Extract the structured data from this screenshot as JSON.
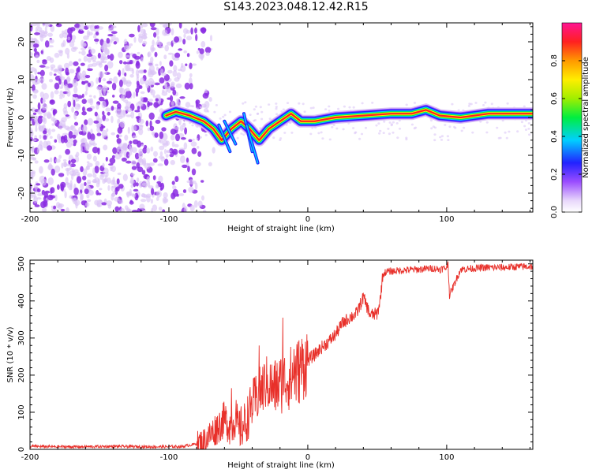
{
  "title": "S143.2023.048.12.42.R15",
  "colors": {
    "snr_line": "#e8302a",
    "spectrogram_noise": "#8a2be2",
    "spectrogram_noise_light": "#d9c2f5"
  },
  "chart_data": [
    {
      "type": "heatmap",
      "title": "",
      "xlabel": "Height of straight line (km)",
      "ylabel": "Frequency (Hz)",
      "xlim": [
        -200,
        162
      ],
      "ylim": [
        -25,
        25
      ],
      "xticks": [
        -200,
        -100,
        0,
        100
      ],
      "yticks": [
        -20,
        -10,
        0,
        10,
        20
      ],
      "colorbar": {
        "label": "Normalized spectral amplitude",
        "range": [
          0.0,
          1.0
        ],
        "ticks": [
          "0.0",
          "0.2",
          "0.4",
          "0.6",
          "0.8"
        ],
        "tick_values": [
          0.0,
          0.2,
          0.4,
          0.6,
          0.8
        ],
        "colormap": "rainbow (white → purple → blue → cyan → green → yellow → orange → red → magenta)"
      },
      "ridge": {
        "description": "dominant spectral line",
        "points": [
          [
            -102,
            0.5
          ],
          [
            -95,
            1.5
          ],
          [
            -85,
            0.5
          ],
          [
            -75,
            -1
          ],
          [
            -68,
            -3
          ],
          [
            -62,
            -6
          ],
          [
            -55,
            -3
          ],
          [
            -48,
            -1
          ],
          [
            -42,
            -3
          ],
          [
            -35,
            -6
          ],
          [
            -28,
            -3
          ],
          [
            -20,
            -1
          ],
          [
            -12,
            1
          ],
          [
            -5,
            -1
          ],
          [
            5,
            -1
          ],
          [
            20,
            0
          ],
          [
            40,
            0.5
          ],
          [
            60,
            1
          ],
          [
            75,
            1
          ],
          [
            85,
            2
          ],
          [
            95,
            0.5
          ],
          [
            110,
            0
          ],
          [
            130,
            1
          ],
          [
            162,
            1
          ]
        ],
        "peak_amplitude_at": [
          60,
          1
        ]
      },
      "noise_region": [
        -200,
        -85
      ]
    },
    {
      "type": "line",
      "title": "",
      "xlabel": "Height of straight line (km)",
      "ylabel": "SNR (10 * v/v)",
      "xlim": [
        -200,
        162
      ],
      "ylim": [
        0,
        510
      ],
      "xticks": [
        -200,
        -100,
        0,
        100
      ],
      "yticks": [
        0,
        100,
        200,
        300,
        400,
        500
      ],
      "series": [
        {
          "x": [
            -200,
            -180,
            -160,
            -140,
            -120,
            -100,
            -90,
            -80,
            -75,
            -70,
            -65,
            -60,
            -55,
            -52,
            -50,
            -45,
            -40,
            -35,
            -30,
            -25,
            -20,
            -15,
            -10,
            -5,
            0,
            5,
            10,
            15,
            20,
            25,
            30,
            35,
            40,
            45,
            50,
            52,
            54,
            56,
            60,
            70,
            80,
            90,
            95,
            100,
            101,
            102,
            110,
            120,
            130,
            140,
            150,
            162
          ],
          "y": [
            8,
            7,
            7,
            8,
            7,
            7,
            8,
            15,
            20,
            40,
            60,
            80,
            60,
            90,
            50,
            70,
            120,
            150,
            180,
            165,
            175,
            190,
            195,
            220,
            240,
            255,
            275,
            290,
            310,
            340,
            355,
            365,
            410,
            362,
            365,
            400,
            470,
            478,
            480,
            483,
            485,
            488,
            485,
            490,
            505,
            415,
            485,
            488,
            490,
            490,
            492,
            493
          ],
          "spikes": [
            [
              -55,
              165
            ],
            [
              -35,
              280
            ],
            [
              -25,
              175
            ],
            [
              -18,
              355
            ],
            [
              -10,
              270
            ]
          ]
        }
      ]
    }
  ]
}
